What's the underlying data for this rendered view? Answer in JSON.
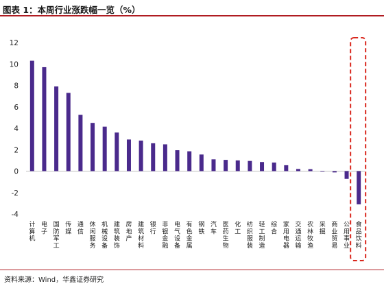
{
  "title": "图表 1：本周行业涨跌幅一览（%）",
  "source": "资料来源：Wind，华鑫证券研究",
  "colors": {
    "bar": "#4a2a8c",
    "highlight_box": "#d9261c",
    "title_rule": "#b01c22",
    "axis": "#bfbfbf"
  },
  "chart_data": {
    "type": "bar",
    "title": "",
    "xlabel": "",
    "ylabel": "",
    "ylim": [
      -4,
      12
    ],
    "yticks": [
      -4,
      -2,
      0,
      2,
      4,
      6,
      8,
      10,
      12
    ],
    "grid": false,
    "legend": "none",
    "categories": [
      "计算机",
      "电子",
      "国防军工",
      "传媒",
      "通信",
      "休闲服务",
      "机械设备",
      "建筑装饰",
      "房地产",
      "建筑材料",
      "银行",
      "非银金融",
      "电气设备",
      "有色金属",
      "钢铁",
      "汽车",
      "医药生物",
      "化工",
      "纺织服装",
      "轻工制造",
      "综合",
      "家用电器",
      "交通运输",
      "农林牧渔",
      "采掘",
      "商业贸易",
      "公用事业",
      "食品饮料"
    ],
    "values": [
      10.3,
      9.7,
      7.9,
      7.3,
      5.25,
      4.5,
      4.15,
      3.6,
      2.95,
      2.85,
      2.6,
      2.5,
      1.95,
      1.85,
      1.55,
      1.1,
      1.05,
      1.0,
      0.95,
      0.85,
      0.8,
      0.55,
      0.2,
      0.18,
      -0.02,
      -0.12,
      -0.72,
      -3.1
    ],
    "highlighted": [
      "食品饮料"
    ]
  }
}
